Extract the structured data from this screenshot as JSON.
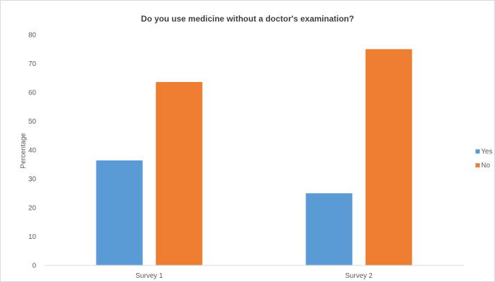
{
  "chart_data": {
    "type": "bar",
    "title": "Do you use medicine without a doctor's examination?",
    "xlabel": "",
    "ylabel": "Percentage",
    "categories": [
      "Survey 1",
      "Survey 2"
    ],
    "series": [
      {
        "name": "Yes",
        "values": [
          36.4,
          25
        ],
        "color": "#5b9bd5"
      },
      {
        "name": "No",
        "values": [
          63.6,
          75
        ],
        "color": "#ed7d31"
      }
    ],
    "ylim": [
      0,
      80
    ],
    "yticks": [
      0,
      10,
      20,
      30,
      40,
      50,
      60,
      70,
      80
    ],
    "grid": false,
    "legend_position": "right"
  }
}
